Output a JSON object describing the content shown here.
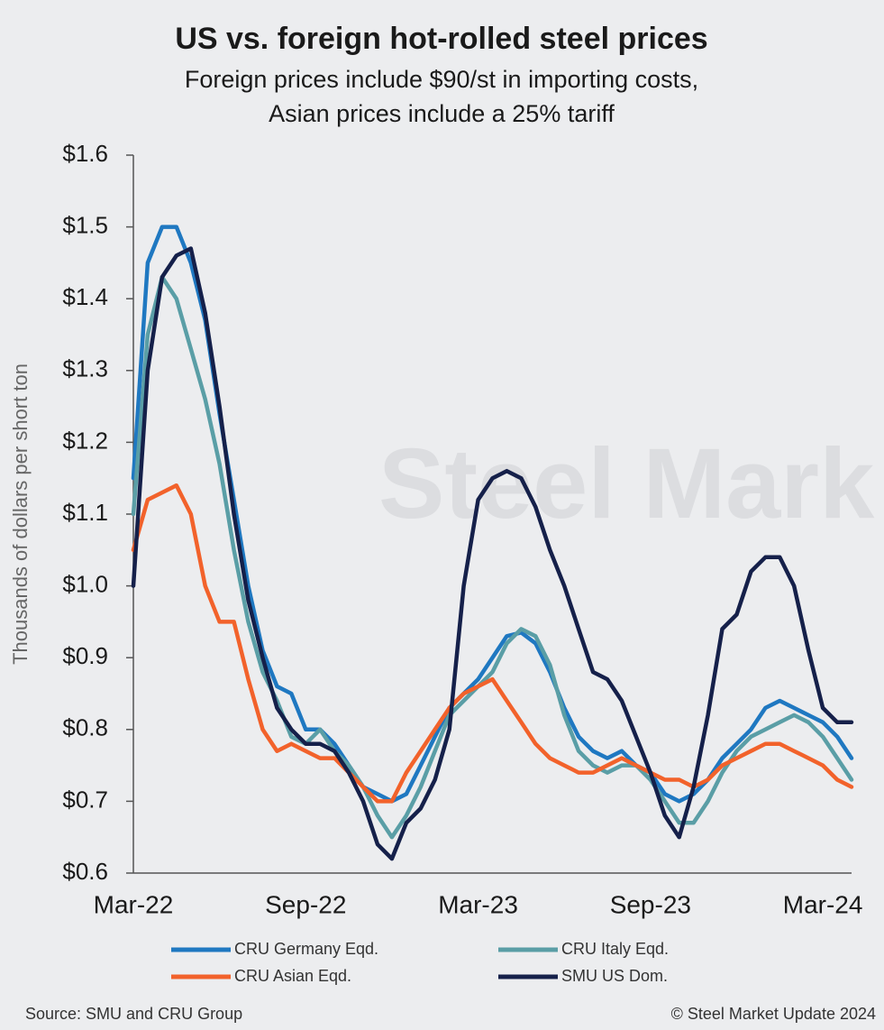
{
  "chart_data": {
    "type": "line",
    "title": "US vs. foreign hot-rolled steel prices",
    "subtitle": [
      "Foreign prices include $90/st in importing costs,",
      "Asian prices include a 25% tariff"
    ],
    "y_label": "Thousands of dollars per short ton",
    "watermark": "Steel Mark",
    "source": "Source: SMU and CRU Group",
    "copyright": "© Steel Market Update 2024",
    "categories": [
      "Mar-22",
      null,
      null,
      null,
      null,
      null,
      null,
      null,
      null,
      null,
      null,
      null,
      "Sep-22",
      null,
      null,
      null,
      null,
      null,
      null,
      null,
      null,
      null,
      null,
      null,
      "Mar-23",
      null,
      null,
      null,
      null,
      null,
      null,
      null,
      null,
      null,
      null,
      null,
      "Sep-23",
      null,
      null,
      null,
      null,
      null,
      null,
      null,
      null,
      null,
      null,
      null,
      "Mar-24",
      null,
      null
    ],
    "ylim": [
      0.6,
      1.6
    ],
    "yticks": [
      {
        "value": 0.6,
        "label": "$0.6"
      },
      {
        "value": 0.7,
        "label": "$0.7"
      },
      {
        "value": 0.8,
        "label": "$0.8"
      },
      {
        "value": 0.9,
        "label": "$0.9"
      },
      {
        "value": 1.0,
        "label": "$1.0"
      },
      {
        "value": 1.1,
        "label": "$1.1"
      },
      {
        "value": 1.2,
        "label": "$1.2"
      },
      {
        "value": 1.3,
        "label": "$1.3"
      },
      {
        "value": 1.4,
        "label": "$1.4"
      },
      {
        "value": 1.5,
        "label": "$1.5"
      },
      {
        "value": 1.6,
        "label": "$1.6"
      }
    ],
    "grid": false,
    "series": [
      {
        "name": "CRU Germany Eqd.",
        "color": "#1f78c1",
        "values": [
          1.15,
          1.45,
          1.5,
          1.5,
          1.45,
          1.37,
          1.24,
          1.12,
          1.0,
          0.91,
          0.86,
          0.85,
          0.8,
          0.8,
          0.78,
          0.75,
          0.72,
          0.71,
          0.7,
          0.71,
          0.75,
          0.79,
          0.83,
          0.85,
          0.87,
          0.9,
          0.93,
          0.935,
          0.92,
          0.88,
          0.83,
          0.79,
          0.77,
          0.76,
          0.77,
          0.75,
          0.74,
          0.71,
          0.7,
          0.71,
          0.73,
          0.76,
          0.78,
          0.8,
          0.83,
          0.84,
          0.83,
          0.82,
          0.81,
          0.79,
          0.76
        ]
      },
      {
        "name": "CRU Italy Eqd.",
        "color": "#5a9ea6",
        "values": [
          1.1,
          1.35,
          1.43,
          1.4,
          1.33,
          1.26,
          1.17,
          1.05,
          0.95,
          0.88,
          0.84,
          0.79,
          0.78,
          0.8,
          0.77,
          0.75,
          0.72,
          0.68,
          0.65,
          0.68,
          0.72,
          0.77,
          0.82,
          0.84,
          0.86,
          0.88,
          0.92,
          0.94,
          0.93,
          0.89,
          0.82,
          0.77,
          0.75,
          0.74,
          0.75,
          0.75,
          0.73,
          0.7,
          0.67,
          0.67,
          0.7,
          0.74,
          0.77,
          0.79,
          0.8,
          0.81,
          0.82,
          0.81,
          0.79,
          0.76,
          0.73
        ]
      },
      {
        "name": "CRU Asian Eqd.",
        "color": "#f2622b",
        "values": [
          1.05,
          1.12,
          1.13,
          1.14,
          1.1,
          1.0,
          0.95,
          0.95,
          0.87,
          0.8,
          0.77,
          0.78,
          0.77,
          0.76,
          0.76,
          0.74,
          0.72,
          0.7,
          0.7,
          0.74,
          0.77,
          0.8,
          0.83,
          0.85,
          0.86,
          0.87,
          0.84,
          0.81,
          0.78,
          0.76,
          0.75,
          0.74,
          0.74,
          0.75,
          0.76,
          0.75,
          0.74,
          0.73,
          0.73,
          0.72,
          0.73,
          0.75,
          0.76,
          0.77,
          0.78,
          0.78,
          0.77,
          0.76,
          0.75,
          0.73,
          0.72
        ]
      },
      {
        "name": "SMU US Dom.",
        "color": "#15204a",
        "values": [
          1.0,
          1.3,
          1.43,
          1.46,
          1.47,
          1.38,
          1.25,
          1.1,
          0.98,
          0.9,
          0.83,
          0.8,
          0.78,
          0.78,
          0.77,
          0.74,
          0.7,
          0.64,
          0.62,
          0.67,
          0.69,
          0.73,
          0.8,
          1.0,
          1.12,
          1.15,
          1.16,
          1.15,
          1.11,
          1.05,
          1.0,
          0.94,
          0.88,
          0.87,
          0.84,
          0.79,
          0.74,
          0.68,
          0.65,
          0.72,
          0.82,
          0.94,
          0.96,
          1.02,
          1.04,
          1.04,
          1.0,
          0.91,
          0.83,
          0.81,
          0.81
        ]
      }
    ]
  }
}
